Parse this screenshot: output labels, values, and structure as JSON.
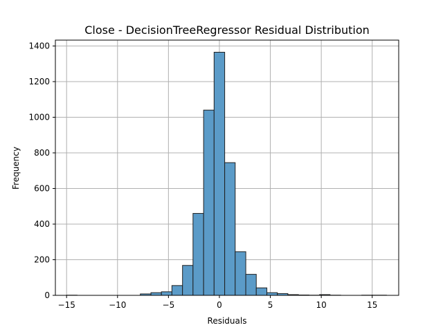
{
  "chart_data": {
    "type": "bar",
    "title": "Close - DecisionTreeRegressor Residual Distribution",
    "xlabel": "Residuals",
    "ylabel": "Frequency",
    "xlim": [
      -16.1,
      17.6
    ],
    "ylim": [
      0,
      1433
    ],
    "xticks": [
      -15,
      -10,
      -5,
      0,
      5,
      10,
      15
    ],
    "yticks": [
      0,
      200,
      400,
      600,
      800,
      1000,
      1200,
      1400
    ],
    "xtick_labels": [
      "−15",
      "−10",
      "−5",
      "0",
      "5",
      "10",
      "15"
    ],
    "ytick_labels": [
      "0",
      "200",
      "400",
      "600",
      "800",
      "1000",
      "1200",
      "1400"
    ],
    "grid": true,
    "bar_fill": "#5b9bc8",
    "bar_edge": "#1f1f1f",
    "grid_color": "#b0b0b0",
    "bins": [
      {
        "x0": -15.0,
        "x1": -13.97,
        "count": 1
      },
      {
        "x0": -13.97,
        "x1": -12.93,
        "count": 0
      },
      {
        "x0": -12.93,
        "x1": -11.9,
        "count": 0
      },
      {
        "x0": -11.9,
        "x1": -10.86,
        "count": 0
      },
      {
        "x0": -10.86,
        "x1": -9.83,
        "count": 0
      },
      {
        "x0": -9.83,
        "x1": -8.79,
        "count": 0
      },
      {
        "x0": -8.79,
        "x1": -7.76,
        "count": 0
      },
      {
        "x0": -7.76,
        "x1": -6.72,
        "count": 8
      },
      {
        "x0": -6.72,
        "x1": -5.69,
        "count": 15
      },
      {
        "x0": -5.69,
        "x1": -4.66,
        "count": 20
      },
      {
        "x0": -4.66,
        "x1": -3.62,
        "count": 55
      },
      {
        "x0": -3.62,
        "x1": -2.59,
        "count": 168
      },
      {
        "x0": -2.59,
        "x1": -1.55,
        "count": 460
      },
      {
        "x0": -1.55,
        "x1": -0.52,
        "count": 1040
      },
      {
        "x0": -0.52,
        "x1": 0.52,
        "count": 1365
      },
      {
        "x0": 0.52,
        "x1": 1.55,
        "count": 745
      },
      {
        "x0": 1.55,
        "x1": 2.59,
        "count": 245
      },
      {
        "x0": 2.59,
        "x1": 3.62,
        "count": 118
      },
      {
        "x0": 3.62,
        "x1": 4.66,
        "count": 42
      },
      {
        "x0": 4.66,
        "x1": 5.69,
        "count": 15
      },
      {
        "x0": 5.69,
        "x1": 6.72,
        "count": 10
      },
      {
        "x0": 6.72,
        "x1": 7.76,
        "count": 4
      },
      {
        "x0": 7.76,
        "x1": 8.79,
        "count": 2
      },
      {
        "x0": 8.79,
        "x1": 9.83,
        "count": 1
      },
      {
        "x0": 9.83,
        "x1": 10.86,
        "count": 4
      },
      {
        "x0": 10.86,
        "x1": 11.9,
        "count": 1
      },
      {
        "x0": 11.9,
        "x1": 12.93,
        "count": 0
      },
      {
        "x0": 12.93,
        "x1": 13.97,
        "count": 0
      },
      {
        "x0": 13.97,
        "x1": 15.0,
        "count": 1
      },
      {
        "x0": 15.0,
        "x1": 16.4,
        "count": 1
      }
    ]
  }
}
